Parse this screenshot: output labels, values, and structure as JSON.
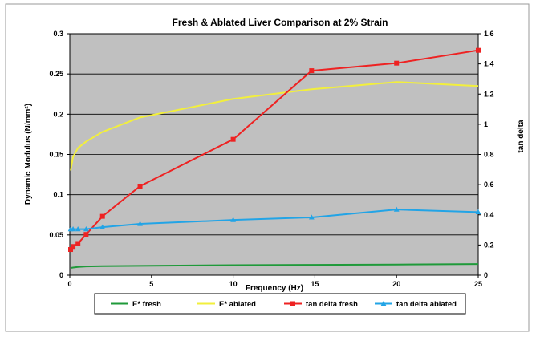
{
  "colors": {
    "plot_bg": "#c0c0c0",
    "grid": "#000000",
    "e_fresh": "#1f9a3a",
    "e_ablated": "#f2ef3c",
    "tan_fresh": "#ee2222",
    "tan_ablated": "#22a4e6"
  },
  "chart_data": {
    "type": "line",
    "title": "Fresh & Ablated Liver Comparison at 2% Strain",
    "xlabel": "Frequency (Hz)",
    "ylabel": "Dynamic Modulus (N/mm²)",
    "y2label": "tan delta",
    "xlim": [
      0,
      25
    ],
    "ylim": [
      0,
      0.3
    ],
    "y2lim": [
      0,
      1.6
    ],
    "x_ticks": [
      "0",
      "5",
      "10",
      "15",
      "20",
      "25"
    ],
    "y_ticks": [
      "0",
      "0.05",
      "0.1",
      "0.15",
      "0.2",
      "0.25",
      "0.3"
    ],
    "y2_ticks": [
      "0",
      "0.2",
      "0.4",
      "0.6",
      "0.8",
      "1",
      "1.2",
      "1.4",
      "1.6"
    ],
    "grid": "horizontal",
    "legend_position": "bottom",
    "series": [
      {
        "name": "E* fresh",
        "axis": "left",
        "marker": "none",
        "x": [
          0.05,
          0.2,
          0.5,
          1,
          2,
          4.3,
          10,
          14.8,
          20,
          25
        ],
        "y": [
          0.009,
          0.0095,
          0.0102,
          0.0108,
          0.0112,
          0.0116,
          0.0125,
          0.0128,
          0.0132,
          0.0138
        ]
      },
      {
        "name": "E* ablated",
        "axis": "left",
        "marker": "none",
        "x": [
          0.05,
          0.2,
          0.5,
          1,
          2,
          4.3,
          10,
          14.8,
          20,
          25
        ],
        "y": [
          0.13,
          0.147,
          0.158,
          0.166,
          0.178,
          0.196,
          0.219,
          0.231,
          0.24,
          0.235
        ]
      },
      {
        "name": "tan delta fresh",
        "axis": "right",
        "marker": "square",
        "x": [
          0.05,
          0.2,
          0.5,
          1,
          2,
          4.3,
          10,
          14.8,
          20,
          25
        ],
        "y": [
          0.17,
          0.19,
          0.21,
          0.27,
          0.39,
          0.59,
          0.9,
          1.355,
          1.405,
          1.49
        ]
      },
      {
        "name": "tan delta ablated",
        "axis": "right",
        "marker": "triangle",
        "x": [
          0.05,
          0.2,
          0.5,
          1,
          2,
          4.3,
          10,
          14.8,
          20,
          25
        ],
        "y": [
          0.305,
          0.305,
          0.305,
          0.305,
          0.318,
          0.34,
          0.366,
          0.383,
          0.435,
          0.418
        ]
      }
    ]
  }
}
